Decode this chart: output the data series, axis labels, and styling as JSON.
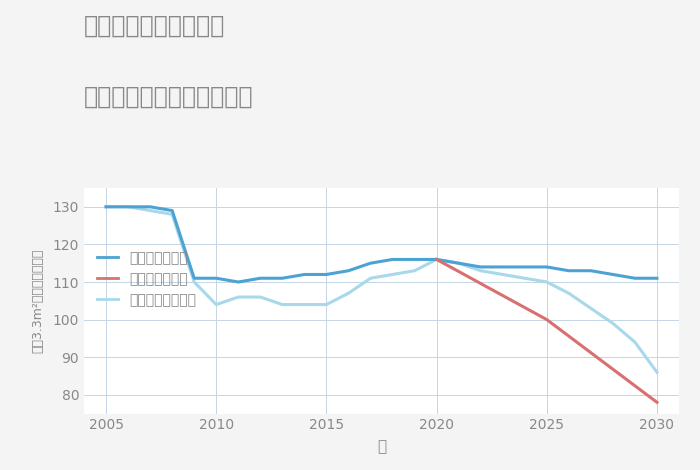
{
  "title_line1": "奈良県橿原市八木町の",
  "title_line2": "中古マンションの価格推移",
  "xlabel": "年",
  "ylabel": "平（3.3m²）単価（万円）",
  "background_color": "#f4f4f4",
  "plot_background": "#ffffff",
  "ylim": [
    75,
    135
  ],
  "xlim": [
    2004,
    2031
  ],
  "yticks": [
    80,
    90,
    100,
    110,
    120,
    130
  ],
  "xticks": [
    2005,
    2010,
    2015,
    2020,
    2025,
    2030
  ],
  "good_scenario": {
    "label": "グッドシナリオ",
    "color": "#4ba3d3",
    "linewidth": 2.2,
    "x": [
      2005,
      2006,
      2007,
      2008,
      2009,
      2010,
      2011,
      2012,
      2013,
      2014,
      2015,
      2016,
      2017,
      2018,
      2019,
      2020,
      2021,
      2022,
      2023,
      2024,
      2025,
      2026,
      2027,
      2028,
      2029,
      2030
    ],
    "y": [
      130,
      130,
      130,
      129,
      111,
      111,
      110,
      111,
      111,
      112,
      112,
      113,
      115,
      116,
      116,
      116,
      115,
      114,
      114,
      114,
      114,
      113,
      113,
      112,
      111,
      111
    ]
  },
  "bad_scenario": {
    "label": "バッドシナリオ",
    "color": "#d97070",
    "linewidth": 2.2,
    "x": [
      2020,
      2025,
      2030
    ],
    "y": [
      116,
      100,
      78
    ]
  },
  "normal_scenario": {
    "label": "ノーマルシナリオ",
    "color": "#a8d8ea",
    "linewidth": 2.2,
    "x": [
      2005,
      2006,
      2007,
      2008,
      2009,
      2010,
      2011,
      2012,
      2013,
      2014,
      2015,
      2016,
      2017,
      2018,
      2019,
      2020,
      2021,
      2022,
      2023,
      2024,
      2025,
      2026,
      2027,
      2028,
      2029,
      2030
    ],
    "y": [
      130,
      130,
      129,
      128,
      110,
      104,
      106,
      106,
      104,
      104,
      104,
      107,
      111,
      112,
      113,
      116,
      115,
      113,
      112,
      111,
      110,
      107,
      103,
      99,
      94,
      86
    ]
  },
  "grid_color": "#c5d5e5",
  "title_color": "#888888",
  "tick_color": "#888888",
  "legend_marker_good": "-",
  "legend_marker_bad": "-",
  "legend_marker_normal": "-"
}
